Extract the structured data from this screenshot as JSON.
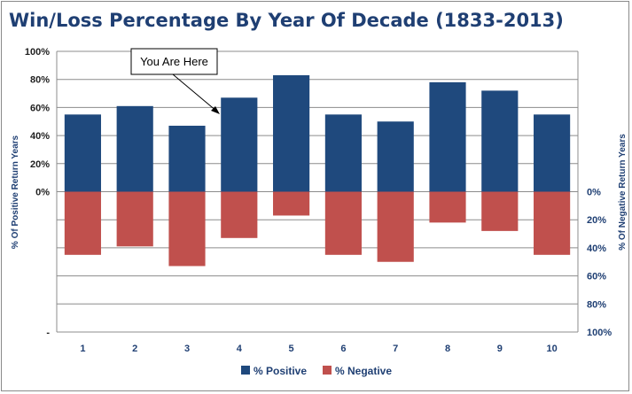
{
  "chart_data": {
    "type": "bar",
    "title": "Win/Loss Percentage By Year Of Decade (1833-2013)",
    "categories": [
      "1",
      "2",
      "3",
      "4",
      "5",
      "6",
      "7",
      "8",
      "9",
      "10"
    ],
    "series": [
      {
        "name": "% Positive",
        "values": [
          55,
          61,
          47,
          67,
          83,
          55,
          50,
          78,
          72,
          55
        ],
        "color": "#1f497d"
      },
      {
        "name": "% Negative",
        "values": [
          45,
          39,
          53,
          33,
          17,
          45,
          50,
          22,
          28,
          45
        ],
        "color": "#c0504d"
      }
    ],
    "left_axis": {
      "label": "% Of Positive Return Years",
      "ticks": [
        "100%",
        "80%",
        "60%",
        "40%",
        "20%",
        "0%",
        "",
        "",
        "",
        "",
        "-"
      ],
      "range": [
        -100,
        100
      ]
    },
    "right_axis": {
      "label": "% Of Negative Return Years",
      "ticks": [
        "0%",
        "20%",
        "40%",
        "60%",
        "80%",
        "100%"
      ],
      "range": [
        0,
        100
      ]
    },
    "annotation": {
      "text": "You Are Here",
      "category": "4"
    },
    "legend": {
      "position": "bottom"
    }
  }
}
